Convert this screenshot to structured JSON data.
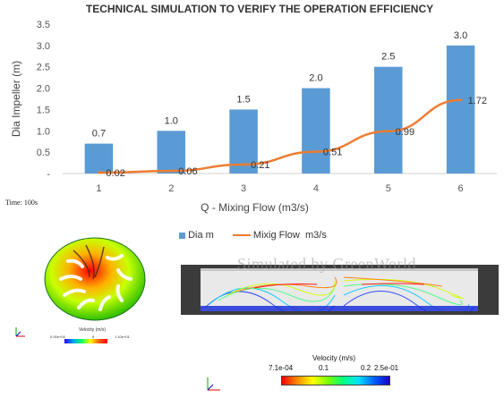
{
  "chart_data": {
    "type": "bar",
    "title": "TECHNICAL SIMULATION TO VERIFY THE OPERATION EFFICIENCY",
    "xlabel": "Q - Mixing Flow (m3/s)",
    "ylabel": "Dia Impeller (m)",
    "categories": [
      "1",
      "2",
      "3",
      "4",
      "5",
      "6"
    ],
    "ylim": [
      0,
      3.5
    ],
    "yticks": [
      "-",
      "0.5",
      "1.0",
      "1.5",
      "2.0",
      "2.5",
      "3.0",
      "3.5"
    ],
    "grid": false,
    "legend_position": "bottom",
    "series": [
      {
        "name": "Dia m",
        "type": "bar",
        "color": "#5b9bd5",
        "values": [
          0.7,
          1.0,
          1.5,
          2.0,
          2.5,
          3.0
        ],
        "labels": [
          "0.7",
          "1.0",
          "1.5",
          "2.0",
          "2.5",
          "3.0"
        ]
      },
      {
        "name": "Mixig Flow  m3/s",
        "type": "line",
        "color": "#ed7d31",
        "values": [
          0.02,
          0.06,
          0.21,
          0.51,
          0.99,
          1.72
        ],
        "labels": [
          "0.02",
          "0.06",
          "0.21",
          "0.51",
          "0.99",
          "1.72"
        ]
      }
    ]
  },
  "captions": {
    "time": "Time: 100s",
    "watermark": "Simulated by GreenWorld"
  },
  "impeller_colorbar": {
    "title": "Velocity (m/s)",
    "min": "0.00e+00",
    "mid": "5",
    "max": "1.10e+01"
  },
  "velocity_colorbar": {
    "title": "Velocity (m/s)",
    "ticks": [
      "7.1e-04",
      "0.1",
      "0.2",
      "2.5e-01"
    ]
  },
  "colors": {
    "bar": "#5b9bd5",
    "line": "#ed7d31",
    "axis_text": "#555555",
    "title_text": "#333333"
  }
}
